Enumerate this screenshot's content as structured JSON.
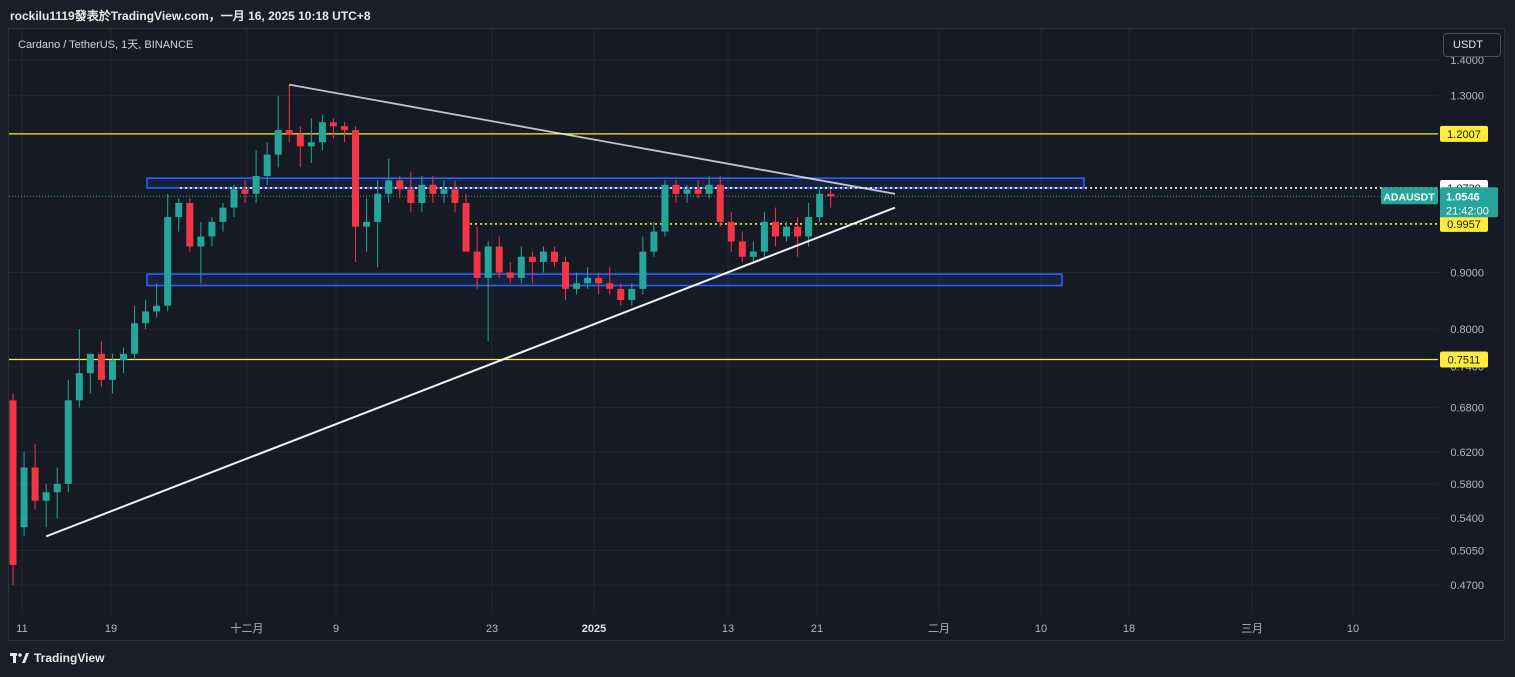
{
  "caption": "rockilu1119發表於TradingView.com，一月 16, 2025 10:18 UTC+8",
  "symbol_line": "Cardano / TetherUS, 1天, BINANCE",
  "currency_button": "USDT",
  "footer_logo": "TradingView",
  "colors": {
    "up": "#26a69a",
    "down": "#f23645",
    "yellow_line": "#ffeb3b",
    "zone_border": "#2962ff",
    "trendline": "#ffffff",
    "background": "#161a25"
  },
  "chart_data": {
    "type": "candlestick",
    "scale": "log",
    "symbol": "ADAUSDT",
    "interval": "1天",
    "exchange": "BINANCE",
    "y_ticks": [
      "1.4000",
      "1.3000",
      "0.9000",
      "0.8000",
      "0.7400",
      "0.6800",
      "0.6200",
      "0.5800",
      "0.5400",
      "0.5050",
      "0.4700"
    ],
    "x_ticks": [
      "11",
      "19",
      "十二月",
      "9",
      "23",
      "2025",
      "13",
      "21",
      "二月",
      "10",
      "18",
      "三月",
      "10"
    ],
    "x_ticks_bold": [
      "2025"
    ],
    "price_labels": [
      {
        "text": "1.2007",
        "value": 1.2007,
        "style": "yellow"
      },
      {
        "text": "1.0730",
        "value": 1.073,
        "style": "white"
      },
      {
        "text": "0.9957",
        "value": 0.9957,
        "style": "yellow"
      },
      {
        "text": "0.7511",
        "value": 0.7511,
        "style": "yellow"
      }
    ],
    "current_price": {
      "symbol": "ADAUSDT",
      "price": "1.0546",
      "value": 1.0546,
      "countdown": "21:42:00"
    },
    "horizontal_lines": [
      {
        "value": 1.2007,
        "style": "solid",
        "color": "yellow"
      },
      {
        "value": 0.7511,
        "style": "solid",
        "color": "yellow"
      },
      {
        "value": 1.073,
        "style": "dotted",
        "color": "white"
      },
      {
        "value": 0.9957,
        "style": "dotted",
        "color": "yellow"
      }
    ],
    "zones": [
      {
        "low": 1.073,
        "high": 1.095
      },
      {
        "low": 0.876,
        "high": 0.897
      }
    ],
    "candles": [
      [
        0.69,
        0.7,
        0.47,
        0.49
      ],
      [
        0.53,
        0.62,
        0.52,
        0.6
      ],
      [
        0.6,
        0.63,
        0.55,
        0.56
      ],
      [
        0.56,
        0.58,
        0.53,
        0.57
      ],
      [
        0.57,
        0.6,
        0.54,
        0.58
      ],
      [
        0.58,
        0.72,
        0.57,
        0.69
      ],
      [
        0.69,
        0.8,
        0.68,
        0.73
      ],
      [
        0.73,
        0.76,
        0.7,
        0.76
      ],
      [
        0.76,
        0.78,
        0.71,
        0.72
      ],
      [
        0.72,
        0.76,
        0.7,
        0.75
      ],
      [
        0.75,
        0.77,
        0.73,
        0.76
      ],
      [
        0.76,
        0.84,
        0.75,
        0.81
      ],
      [
        0.81,
        0.85,
        0.8,
        0.83
      ],
      [
        0.83,
        0.88,
        0.82,
        0.84
      ],
      [
        0.84,
        1.06,
        0.83,
        1.01
      ],
      [
        1.01,
        1.05,
        0.98,
        1.04
      ],
      [
        1.04,
        1.05,
        0.94,
        0.95
      ],
      [
        0.95,
        1.0,
        0.88,
        0.97
      ],
      [
        0.97,
        1.01,
        0.95,
        1.0
      ],
      [
        1.0,
        1.04,
        0.98,
        1.03
      ],
      [
        1.03,
        1.08,
        1.01,
        1.07
      ],
      [
        1.07,
        1.09,
        1.04,
        1.06
      ],
      [
        1.06,
        1.16,
        1.04,
        1.1
      ],
      [
        1.1,
        1.18,
        1.08,
        1.15
      ],
      [
        1.15,
        1.3,
        1.12,
        1.21
      ],
      [
        1.21,
        1.33,
        1.18,
        1.2
      ],
      [
        1.2,
        1.22,
        1.12,
        1.17
      ],
      [
        1.17,
        1.24,
        1.13,
        1.18
      ],
      [
        1.18,
        1.25,
        1.16,
        1.23
      ],
      [
        1.23,
        1.24,
        1.19,
        1.22
      ],
      [
        1.22,
        1.23,
        1.18,
        1.21
      ],
      [
        1.21,
        1.22,
        0.92,
        0.99
      ],
      [
        0.99,
        1.05,
        0.94,
        1.0
      ],
      [
        1.0,
        1.09,
        0.91,
        1.06
      ],
      [
        1.06,
        1.14,
        1.04,
        1.09
      ],
      [
        1.09,
        1.1,
        1.05,
        1.07
      ],
      [
        1.07,
        1.11,
        1.02,
        1.04
      ],
      [
        1.04,
        1.1,
        1.02,
        1.08
      ],
      [
        1.08,
        1.1,
        1.04,
        1.06
      ],
      [
        1.06,
        1.09,
        1.04,
        1.07
      ],
      [
        1.07,
        1.09,
        1.02,
        1.04
      ],
      [
        1.04,
        1.06,
        0.94,
        0.94
      ],
      [
        0.94,
        0.99,
        0.87,
        0.89
      ],
      [
        0.89,
        0.96,
        0.78,
        0.95
      ],
      [
        0.95,
        0.97,
        0.89,
        0.9
      ],
      [
        0.9,
        0.92,
        0.88,
        0.89
      ],
      [
        0.89,
        0.95,
        0.88,
        0.93
      ],
      [
        0.93,
        0.94,
        0.88,
        0.92
      ],
      [
        0.92,
        0.95,
        0.9,
        0.94
      ],
      [
        0.94,
        0.95,
        0.91,
        0.92
      ],
      [
        0.92,
        0.93,
        0.85,
        0.87
      ],
      [
        0.87,
        0.9,
        0.86,
        0.88
      ],
      [
        0.88,
        0.91,
        0.87,
        0.89
      ],
      [
        0.89,
        0.9,
        0.86,
        0.88
      ],
      [
        0.88,
        0.91,
        0.86,
        0.87
      ],
      [
        0.87,
        0.88,
        0.84,
        0.85
      ],
      [
        0.85,
        0.88,
        0.84,
        0.87
      ],
      [
        0.87,
        0.97,
        0.86,
        0.94
      ],
      [
        0.94,
        1.0,
        0.93,
        0.98
      ],
      [
        0.98,
        1.09,
        0.97,
        1.08
      ],
      [
        1.08,
        1.09,
        1.04,
        1.06
      ],
      [
        1.06,
        1.08,
        1.04,
        1.07
      ],
      [
        1.07,
        1.09,
        1.05,
        1.06
      ],
      [
        1.06,
        1.1,
        1.05,
        1.08
      ],
      [
        1.08,
        1.1,
        0.99,
        1.0
      ],
      [
        1.0,
        1.02,
        0.94,
        0.96
      ],
      [
        0.96,
        0.98,
        0.92,
        0.93
      ],
      [
        0.93,
        0.96,
        0.92,
        0.94
      ],
      [
        0.94,
        1.02,
        0.93,
        1.0
      ],
      [
        1.0,
        1.03,
        0.95,
        0.97
      ],
      [
        0.97,
        1.0,
        0.96,
        0.99
      ],
      [
        0.99,
        1.01,
        0.93,
        0.97
      ],
      [
        0.97,
        1.04,
        0.95,
        1.01
      ],
      [
        1.01,
        1.07,
        1.0,
        1.06
      ],
      [
        1.06,
        1.07,
        1.03,
        1.0546
      ]
    ],
    "trendlines": [
      {
        "from": {
          "candle": 25,
          "price": 1.33
        },
        "to": {
          "candle": 84,
          "price": 1.06
        }
      },
      {
        "from": {
          "candle": 3,
          "price": 0.52
        },
        "to": {
          "candle": 84,
          "price": 1.03
        }
      }
    ]
  }
}
